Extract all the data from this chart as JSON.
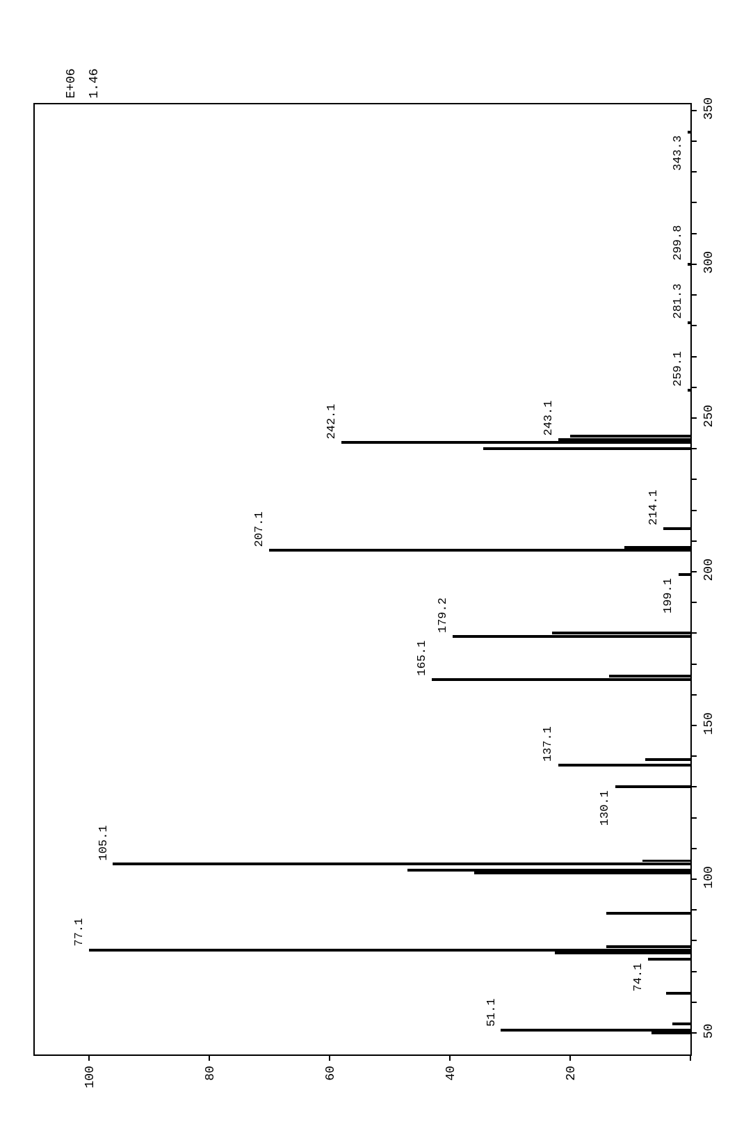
{
  "chart_data": {
    "type": "bar",
    "orientation": "horizontal",
    "annotations": [
      "E+06",
      "1.46",
      {
        "text": "51.1",
        "x": 31.5,
        "y": 51
      },
      {
        "text": "74.1",
        "x": 7,
        "y": 74
      },
      {
        "text": "77.1",
        "x": 100,
        "y": 77
      },
      {
        "text": "105.1",
        "x": 96,
        "y": 105
      },
      {
        "text": "130.1",
        "x": 12.5,
        "y": 130
      },
      {
        "text": "137.1",
        "x": 22,
        "y": 137
      },
      {
        "text": "165.1",
        "x": 43,
        "y": 165
      },
      {
        "text": "179.2",
        "x": 39.5,
        "y": 179
      },
      {
        "text": "199.1",
        "x": 2,
        "y": 199
      },
      {
        "text": "207.1",
        "x": 70,
        "y": 207
      },
      {
        "text": "214.1",
        "x": 4.5,
        "y": 214
      },
      {
        "text": "242.1",
        "x": 58,
        "y": 242
      },
      {
        "text": "243.1",
        "x": 22,
        "y": 243
      },
      {
        "text": "259.1",
        "x": 0.5,
        "y": 259
      },
      {
        "text": "281.3",
        "x": 0.5,
        "y": 281
      },
      {
        "text": "299.8",
        "x": 0.5,
        "y": 300
      },
      {
        "text": "343.3",
        "x": 0.5,
        "y": 343
      }
    ],
    "x": [
      50,
      51,
      53,
      63,
      74,
      76,
      77,
      78,
      89,
      102,
      103,
      105,
      106,
      130,
      137,
      139,
      165,
      166,
      179,
      180,
      199,
      207,
      208,
      214,
      240,
      242,
      243,
      244,
      259,
      281,
      300,
      343
    ],
    "series": [
      {
        "color": "#000000",
        "values": [
          6.5,
          31.5,
          3,
          4,
          7,
          22.5,
          100,
          14,
          14,
          36,
          47,
          96,
          8,
          12.5,
          22,
          7.5,
          43,
          13.5,
          39.5,
          23,
          2,
          70,
          11,
          4.5,
          34.5,
          58,
          22,
          20,
          0.5,
          0.5,
          0.5,
          0.5
        ]
      }
    ],
    "xlim": [
      109,
      0
    ],
    "xticks": [
      {
        "value": 0,
        "label": null
      },
      20,
      40,
      60,
      80,
      100
    ],
    "ylim": [
      43,
      352
    ],
    "yticks": [
      50,
      {
        "value": 60,
        "label": null
      },
      {
        "value": 70,
        "label": null
      },
      {
        "value": 80,
        "label": null
      },
      {
        "value": 90,
        "label": null
      },
      100,
      {
        "value": 110,
        "label": null
      },
      {
        "value": 120,
        "label": null
      },
      {
        "value": 130,
        "label": null
      },
      {
        "value": 140,
        "label": null
      },
      150,
      {
        "value": 160,
        "label": null
      },
      {
        "value": 170,
        "label": null
      },
      {
        "value": 180,
        "label": null
      },
      {
        "value": 190,
        "label": null
      },
      200,
      {
        "value": 210,
        "label": null
      },
      {
        "value": 220,
        "label": null
      },
      {
        "value": 230,
        "label": null
      },
      {
        "value": 240,
        "label": null
      },
      250,
      {
        "value": 260,
        "label": null
      },
      {
        "value": 270,
        "label": null
      },
      {
        "value": 280,
        "label": null
      },
      {
        "value": 290,
        "label": null
      },
      300,
      {
        "value": 310,
        "label": null
      },
      {
        "value": 320,
        "label": null
      },
      {
        "value": 330,
        "label": null
      },
      {
        "value": 340,
        "label": null
      },
      350
    ]
  }
}
